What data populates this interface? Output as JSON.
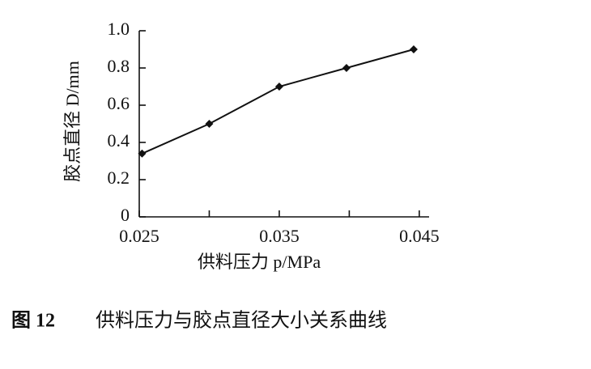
{
  "chart_data": {
    "type": "line",
    "x": [
      0.0252,
      0.03,
      0.035,
      0.0398,
      0.0446
    ],
    "values": [
      0.34,
      0.5,
      0.7,
      0.8,
      0.9
    ],
    "color": "#111111",
    "xlim": [
      0.025,
      0.0457
    ],
    "xticks": [
      0.025,
      0.035,
      0.045
    ],
    "xminorticks": [
      0.03,
      0.04
    ],
    "ylim": [
      0,
      1
    ],
    "yticks": [
      0,
      0.2,
      0.4,
      0.6,
      0.8,
      {
        "value": 1,
        "label": "1.0"
      }
    ],
    "xlabel": "供料压力 p/MPa",
    "ylabel": "胶点直径 D/mm",
    "caption_label": "图 12",
    "caption": "供料压力与胶点直径大小关系曲线"
  }
}
